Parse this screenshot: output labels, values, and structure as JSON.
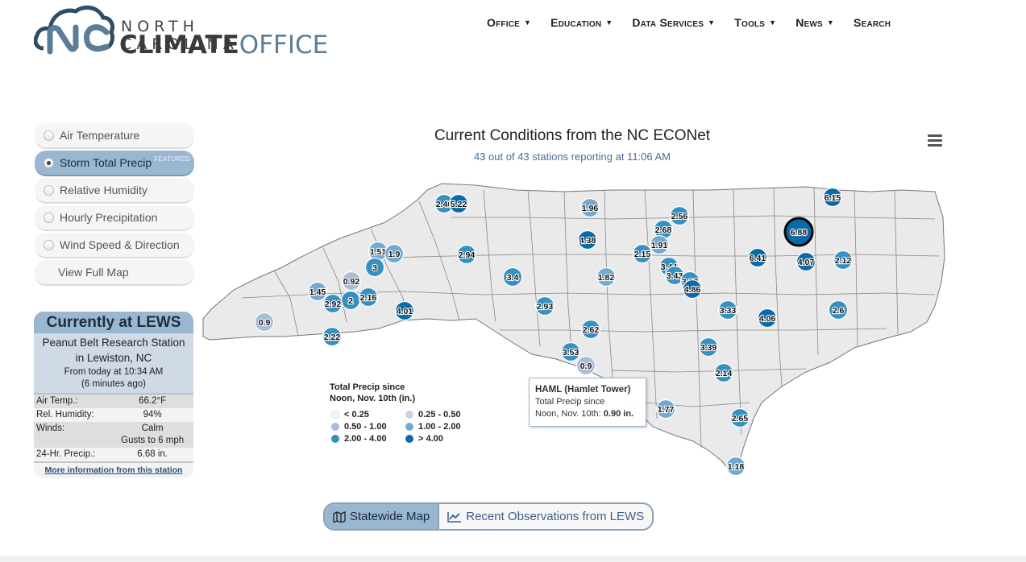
{
  "header": {
    "logo_line1": "NORTH CAROLINA",
    "logo_bold": "CLIMATE",
    "logo_light": "OFFICE",
    "nav": [
      {
        "label": "Office"
      },
      {
        "label": "Education"
      },
      {
        "label": "Data Services"
      },
      {
        "label": "Tools"
      },
      {
        "label": "News"
      },
      {
        "label": "Search"
      }
    ]
  },
  "sidebar": {
    "options": [
      {
        "label": "Air Temperature"
      },
      {
        "label": "Storm Total Precip",
        "badge": "FEATURED"
      },
      {
        "label": "Relative Humidity"
      },
      {
        "label": "Hourly Precipitation"
      },
      {
        "label": "Wind Speed & Direction"
      },
      {
        "label": "View Full Map"
      }
    ],
    "selected": "Storm Total Precip"
  },
  "lews": {
    "title": "Currently at LEWS",
    "station_line1": "Peanut Belt Research Station",
    "station_line2": "in Lewiston, NC",
    "from_line1": "From today at 10:34 AM",
    "from_line2": "(6 minutes ago)",
    "rows": [
      {
        "label": "Air Temp.:",
        "value": "66.2°F"
      },
      {
        "label": "Rel. Humidity:",
        "value": "94%"
      },
      {
        "label": "Winds:",
        "value": "Calm",
        "value2": "Gusts to 6 mph"
      },
      {
        "label": "24-Hr. Precip.:",
        "value": "6.68 in."
      }
    ],
    "more_link": "More information from this station"
  },
  "chart": {
    "title": "Current Conditions from the NC ECONet",
    "subtitle": "43 out of 43 stations reporting at 11:06 AM",
    "colors": {
      "lt025": "#f7f4f9",
      "c025_050": "#ccd1e6",
      "c050_100": "#a9bddb",
      "c100_200": "#74a9cf",
      "c200_400": "#3690c0",
      "gt400": "#0a6aa8"
    },
    "legend": {
      "title_line1": "Total Precip since",
      "title_line2": "Noon, Nov. 10th (in.)",
      "items": [
        {
          "label": "< 0.25",
          "color": "#f7f4f9"
        },
        {
          "label": "0.25 - 0.50",
          "color": "#ccd1e6"
        },
        {
          "label": "0.50 - 1.00",
          "color": "#a9bddb"
        },
        {
          "label": "1.00 - 2.00",
          "color": "#74a9cf"
        },
        {
          "label": "2.00 - 4.00",
          "color": "#3690c0"
        },
        {
          "label": "> 4.00",
          "color": "#0a6aa8"
        }
      ]
    },
    "tooltip": {
      "name": "HAML (Hamlet Tower)",
      "line2": "Total Precip since",
      "line3_prefix": "Noon, Nov. 10th: ",
      "line3_value": "0.90 in."
    },
    "highlighted_station": "6.88"
  },
  "chart_data": {
    "type": "scatter",
    "title": "Current Conditions from the NC ECONet",
    "subtitle": "43 out of 43 stations reporting at 11:06 AM",
    "series": [
      {
        "values": [
          2.46,
          5.22,
          1.96,
          2.56,
          6.15,
          2.68,
          4.38,
          1.91,
          6.88,
          2.15,
          1.51,
          1.9,
          2.94,
          3.44,
          6.41,
          4.07,
          2.12,
          3,
          3.43,
          3.29,
          3.4,
          1.82,
          4.86,
          0.92,
          1.45,
          2,
          2.16,
          2.92,
          4.01,
          2.93,
          3.33,
          2.6,
          0.9,
          4.06,
          2.22,
          2.62,
          3.39,
          3.53,
          0.9,
          2.14,
          1.77,
          2.65,
          1.18
        ]
      }
    ]
  },
  "bottom_toggle": {
    "statewide": "Statewide Map",
    "recent": "Recent Observations from LEWS"
  }
}
